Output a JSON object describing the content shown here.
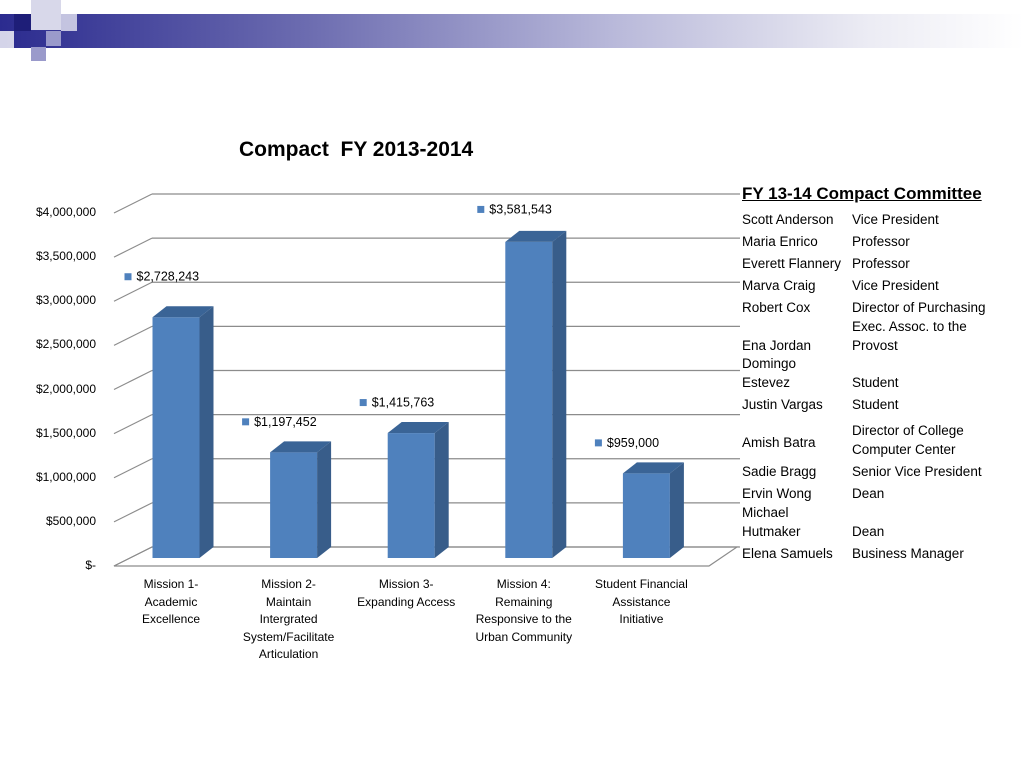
{
  "chart_data": {
    "type": "bar",
    "title": "Compact  FY 2013-2014",
    "categories": [
      "Mission 1-\nAcademic\nExcellence",
      "Mission 2-\nMaintain\nIntergrated\nSystem/Facilitate\nArticulation",
      "Mission 3-\nExpanding Access",
      "Mission 4:\nRemaining\nResponsive to the\nUrban Community",
      "Student Financial\nAssistance\nInitiative"
    ],
    "values": [
      2728243,
      1197452,
      1415763,
      3581543,
      959000
    ],
    "data_labels": [
      "$2,728,243",
      "$1,197,452",
      "$1,415,763",
      "$3,581,543",
      "$959,000"
    ],
    "yticks": [
      0,
      500000,
      1000000,
      1500000,
      2000000,
      2500000,
      3000000,
      3500000,
      4000000
    ],
    "ytick_labels": [
      "$-",
      "$500,000",
      "$1,000,000",
      "$1,500,000",
      "$2,000,000",
      "$2,500,000",
      "$3,000,000",
      "$3,500,000",
      "$4,000,000"
    ],
    "ylim": [
      0,
      4000000
    ],
    "xlabel": "",
    "ylabel": "",
    "grid": true,
    "legend": "none",
    "style": "3d-column",
    "colors": {
      "bar_front": "#4f81bd",
      "bar_side": "#385d8a",
      "bar_top": "#3a6496",
      "marker": "#4f81bd"
    }
  },
  "committee": {
    "title": "FY 13-14 Compact Committee",
    "members": [
      {
        "name": "Scott Anderson",
        "role": "Vice President"
      },
      {
        "name": "Maria Enrico",
        "role": "Professor"
      },
      {
        "name": "Everett Flannery",
        "role": "Professor"
      },
      {
        "name": "Marva Craig",
        "role": "Vice President"
      },
      {
        "name": "Robert Cox",
        "role": "Director of Purchasing"
      },
      {
        "name": "Ena Jordan",
        "role": "Exec. Assoc. to the\nProvost"
      },
      {
        "name": " Domingo\nEstevez",
        "role": "Student"
      },
      {
        "name": "Justin Vargas",
        "role": "Student"
      },
      {
        "name": "Amish Batra",
        "role": "Director of College\nComputer Center"
      },
      {
        "name": "Sadie Bragg",
        "role": "Senior Vice President"
      },
      {
        "name": "Ervin Wong",
        "role": "Dean"
      },
      {
        "name": "Michael\nHutmaker",
        "role": "Dean"
      },
      {
        "name": "Elena Samuels",
        "role": "Business Manager"
      }
    ]
  }
}
